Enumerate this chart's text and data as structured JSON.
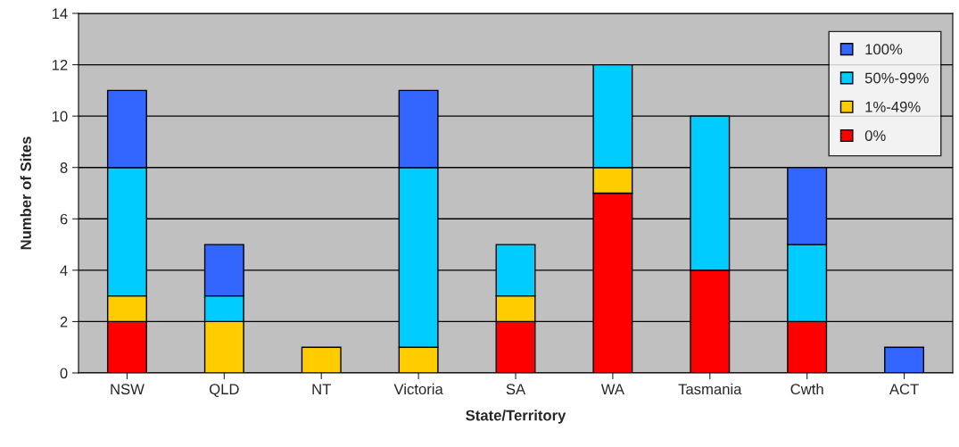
{
  "chart_data": {
    "type": "bar",
    "stacked": true,
    "xlabel": "State/Territory",
    "ylabel": "Number of Sites",
    "categories": [
      "NSW",
      "QLD",
      "NT",
      "Victoria",
      "SA",
      "WA",
      "Tasmania",
      "Cwth",
      "ACT"
    ],
    "series": [
      {
        "name": "0%",
        "color": "#ff0000",
        "values": [
          2,
          0,
          0,
          0,
          2,
          7,
          4,
          2,
          0
        ]
      },
      {
        "name": "1%-49%",
        "color": "#ffcc00",
        "values": [
          1,
          2,
          1,
          1,
          1,
          1,
          0,
          0,
          0
        ]
      },
      {
        "name": "50%-99%",
        "color": "#00ccff",
        "values": [
          5,
          1,
          0,
          7,
          2,
          4,
          6,
          3,
          0
        ]
      },
      {
        "name": "100%",
        "color": "#3366ff",
        "values": [
          3,
          2,
          0,
          3,
          0,
          0,
          0,
          3,
          1
        ]
      }
    ],
    "ylim": [
      0,
      14
    ],
    "yticks": [
      0,
      2,
      4,
      6,
      8,
      10,
      12,
      14
    ],
    "grid": "y",
    "legend": "top right"
  }
}
